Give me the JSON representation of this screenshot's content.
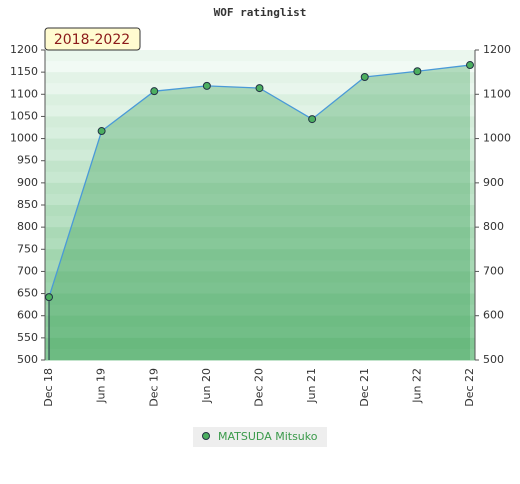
{
  "chart_data": {
    "type": "area-line",
    "title": "WOF ratinglist",
    "annotation": "2018-2022",
    "categories": [
      "Dec 18",
      "Jun 19",
      "Dec 19",
      "Jun 20",
      "Dec 20",
      "Jun 21",
      "Dec 21",
      "Jun 22",
      "Dec 22"
    ],
    "series": [
      {
        "name": "MATSUDA Mitsuko",
        "color": "#4caf60",
        "line_color": "#4a9ad8",
        "values": [
          642,
          1017,
          1107,
          1119,
          1114,
          1044,
          1139,
          1152,
          1166
        ]
      }
    ],
    "ylim": [
      500,
      1200
    ],
    "yticks": [
      500,
      550,
      600,
      650,
      700,
      750,
      800,
      850,
      900,
      950,
      1000,
      1050,
      1100,
      1150,
      1200
    ],
    "y2lim": [
      500,
      1200
    ],
    "y2ticks": [
      500,
      600,
      700,
      800,
      900,
      1000,
      1100,
      1200
    ]
  }
}
